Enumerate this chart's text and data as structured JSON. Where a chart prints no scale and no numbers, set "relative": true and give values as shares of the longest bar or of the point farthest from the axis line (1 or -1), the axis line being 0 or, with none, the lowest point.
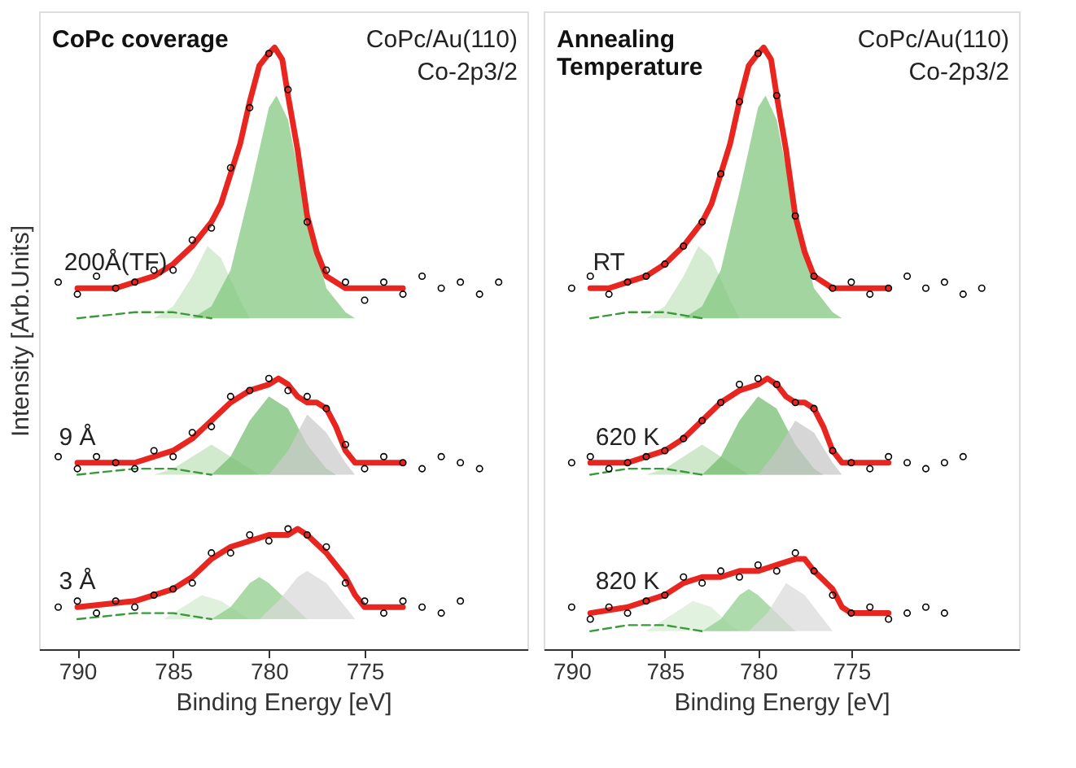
{
  "chart_data": [
    {
      "type": "line",
      "title": "CoPc coverage",
      "xlabel": "Binding Energy [eV]",
      "ylabel": "Intensity [Arb.Units]",
      "relative": true,
      "xlim": [
        792,
        766.5
      ],
      "xticks": [
        790,
        785,
        780,
        775
      ],
      "tick_labels": "x",
      "grid": false,
      "annotations": [
        "CoPc/Au(110)",
        "Co-2p3/2",
        {
          "text": "200Å(TF)",
          "x": 788,
          "y": 0.6
        },
        {
          "text": "9 Å",
          "x": 790,
          "y": 0.31
        },
        {
          "text": "3 Å",
          "x": 790,
          "y": 0.07
        }
      ],
      "series": [
        {
          "type": "area",
          "color": "#c8e6c3",
          "x": [
            786,
            785,
            784,
            783.2,
            782.5,
            781.5,
            781
          ],
          "values": [
            0.55,
            0.57,
            0.62,
            0.67,
            0.65,
            0.58,
            0.55
          ]
        },
        {
          "type": "area",
          "color": "#80c67c",
          "x": [
            784,
            783,
            782,
            781,
            780,
            779.6,
            779,
            778,
            777,
            776,
            775.5
          ],
          "values": [
            0.55,
            0.57,
            0.63,
            0.76,
            0.9,
            0.92,
            0.88,
            0.72,
            0.6,
            0.56,
            0.55
          ]
        },
        {
          "type": "line",
          "line_style": "dashed",
          "color": "#3a9a3a",
          "x": [
            790,
            787,
            785,
            783
          ],
          "values": [
            0.55,
            0.56,
            0.56,
            0.55
          ]
        },
        {
          "type": "area",
          "color": "#bfe0b9",
          "x": [
            786,
            785,
            784,
            783,
            782,
            781,
            780.5
          ],
          "values": [
            0.29,
            0.3,
            0.32,
            0.34,
            0.32,
            0.3,
            0.29
          ]
        },
        {
          "type": "area",
          "color": "#74bd70",
          "x": [
            783,
            782,
            781,
            780,
            779,
            778,
            777,
            776.5
          ],
          "values": [
            0.29,
            0.32,
            0.38,
            0.42,
            0.4,
            0.34,
            0.3,
            0.29
          ]
        },
        {
          "type": "area",
          "color": "#cacaca",
          "x": [
            780,
            779,
            778,
            777,
            776,
            775.5
          ],
          "values": [
            0.29,
            0.33,
            0.39,
            0.36,
            0.31,
            0.29
          ]
        },
        {
          "type": "line",
          "line_style": "dashed",
          "color": "#3a9a3a",
          "x": [
            790,
            787,
            785,
            783
          ],
          "values": [
            0.29,
            0.3,
            0.3,
            0.29
          ]
        },
        {
          "type": "area",
          "color": "#d2ebce",
          "x": [
            785.5,
            784.5,
            783.5,
            782.5,
            781.5,
            781
          ],
          "values": [
            0.05,
            0.07,
            0.09,
            0.08,
            0.06,
            0.05
          ]
        },
        {
          "type": "area",
          "color": "#8bcc87",
          "x": [
            783,
            782,
            781,
            780.5,
            780,
            779,
            778
          ],
          "values": [
            0.05,
            0.07,
            0.11,
            0.12,
            0.11,
            0.08,
            0.05
          ]
        },
        {
          "type": "area",
          "color": "#d8d8d8",
          "x": [
            780.5,
            779.5,
            778.5,
            778,
            777,
            776,
            775.5
          ],
          "values": [
            0.05,
            0.08,
            0.12,
            0.13,
            0.11,
            0.07,
            0.05
          ]
        },
        {
          "type": "line",
          "line_style": "dashed",
          "color": "#3a9a3a",
          "x": [
            790,
            787,
            785,
            783
          ],
          "values": [
            0.05,
            0.06,
            0.06,
            0.05
          ]
        },
        {
          "type": "scatter",
          "marker": "circle",
          "color": "#000000",
          "x": [
            791,
            790,
            789,
            788,
            787,
            786,
            785,
            784,
            783,
            782,
            781,
            780,
            779,
            778,
            777,
            776,
            775,
            774,
            773,
            772,
            771,
            770,
            769,
            768
          ],
          "values": [
            0.61,
            0.59,
            0.62,
            0.6,
            0.61,
            0.63,
            0.63,
            0.68,
            0.7,
            0.8,
            0.9,
            0.99,
            0.93,
            0.71,
            0.63,
            0.61,
            0.58,
            0.61,
            0.59,
            0.62,
            0.6,
            0.61,
            0.59,
            0.61
          ]
        },
        {
          "type": "scatter",
          "marker": "circle",
          "color": "#000000",
          "x": [
            791,
            790,
            789,
            788,
            787,
            786,
            785,
            784,
            783,
            782,
            781,
            780,
            779,
            778,
            777,
            776,
            775,
            774,
            773,
            772,
            771,
            770,
            769
          ],
          "values": [
            0.32,
            0.3,
            0.32,
            0.31,
            0.3,
            0.33,
            0.32,
            0.36,
            0.37,
            0.42,
            0.43,
            0.45,
            0.43,
            0.42,
            0.4,
            0.34,
            0.3,
            0.32,
            0.31,
            0.3,
            0.32,
            0.31,
            0.3
          ]
        },
        {
          "type": "scatter",
          "marker": "circle",
          "color": "#000000",
          "x": [
            791,
            790,
            789,
            788,
            787,
            786,
            785,
            784,
            783,
            782,
            781,
            780,
            779,
            778,
            777,
            776,
            775,
            774,
            773,
            772,
            771,
            770
          ],
          "values": [
            0.07,
            0.08,
            0.06,
            0.08,
            0.07,
            0.09,
            0.1,
            0.11,
            0.16,
            0.16,
            0.19,
            0.18,
            0.2,
            0.19,
            0.17,
            0.11,
            0.08,
            0.06,
            0.08,
            0.07,
            0.06,
            0.08
          ]
        },
        {
          "color": "#e8251f",
          "x": [
            790,
            788,
            786,
            785,
            784,
            783,
            782.5,
            782,
            781.5,
            781,
            780.5,
            780,
            779.7,
            779.3,
            779,
            778.5,
            778,
            777.5,
            777,
            776,
            775,
            773
          ],
          "values": [
            0.6,
            0.6,
            0.62,
            0.64,
            0.67,
            0.71,
            0.74,
            0.79,
            0.84,
            0.91,
            0.97,
            0.99,
            1.0,
            0.98,
            0.92,
            0.83,
            0.72,
            0.66,
            0.62,
            0.6,
            0.6,
            0.6
          ]
        },
        {
          "color": "#e8251f",
          "x": [
            790,
            787,
            785,
            784,
            783,
            782,
            781,
            780,
            779.5,
            779,
            778.5,
            778,
            777.5,
            777,
            776.5,
            776,
            775.5,
            775,
            773
          ],
          "values": [
            0.31,
            0.31,
            0.33,
            0.35,
            0.38,
            0.41,
            0.43,
            0.44,
            0.45,
            0.44,
            0.42,
            0.41,
            0.41,
            0.4,
            0.37,
            0.33,
            0.31,
            0.31,
            0.31
          ]
        },
        {
          "color": "#e8251f",
          "x": [
            790,
            787,
            785,
            784,
            783,
            782,
            781,
            780,
            779,
            778.5,
            778,
            777,
            776,
            775.5,
            775,
            773
          ],
          "values": [
            0.07,
            0.08,
            0.1,
            0.12,
            0.15,
            0.17,
            0.18,
            0.19,
            0.19,
            0.2,
            0.19,
            0.16,
            0.12,
            0.09,
            0.07,
            0.07
          ]
        }
      ]
    },
    {
      "type": "line",
      "title": "Annealing\nTemperature",
      "xlabel": "Binding Energy [eV]",
      "relative": true,
      "xlim": [
        791.5,
        766
      ],
      "xticks": [
        790,
        785,
        780,
        775
      ],
      "tick_labels": "x",
      "grid": false,
      "annotations": [
        "CoPc/Au(110)",
        "Co-2p3/2",
        {
          "text": "RT",
          "x": 788,
          "y": 0.6
        },
        {
          "text": "620 K",
          "x": 787,
          "y": 0.31
        },
        {
          "text": "820 K",
          "x": 787,
          "y": 0.07
        }
      ],
      "series": [
        {
          "type": "area",
          "color": "#c6e5c1",
          "x": [
            786,
            785,
            784,
            783.2,
            782.5,
            781.5,
            781
          ],
          "values": [
            0.55,
            0.57,
            0.62,
            0.67,
            0.65,
            0.58,
            0.55
          ]
        },
        {
          "type": "area",
          "color": "#7ec57a",
          "x": [
            784,
            783,
            782,
            781,
            780,
            779.6,
            779,
            778,
            777,
            776,
            775.5
          ],
          "values": [
            0.55,
            0.57,
            0.63,
            0.76,
            0.9,
            0.92,
            0.88,
            0.72,
            0.6,
            0.56,
            0.55
          ]
        },
        {
          "type": "line",
          "line_style": "dashed",
          "color": "#3a9a3a",
          "x": [
            789,
            787,
            785,
            783
          ],
          "values": [
            0.55,
            0.56,
            0.56,
            0.55
          ]
        },
        {
          "type": "area",
          "color": "#bcdeb6",
          "x": [
            786,
            785,
            784,
            783,
            782,
            781,
            780.5
          ],
          "values": [
            0.29,
            0.3,
            0.32,
            0.34,
            0.32,
            0.3,
            0.29
          ]
        },
        {
          "type": "area",
          "color": "#71bb6d",
          "x": [
            783,
            782,
            781,
            780,
            779,
            778,
            777,
            776.5
          ],
          "values": [
            0.29,
            0.32,
            0.38,
            0.42,
            0.4,
            0.34,
            0.3,
            0.29
          ]
        },
        {
          "type": "area",
          "color": "#c6c6c6",
          "x": [
            780,
            779,
            778,
            777,
            776,
            775.5
          ],
          "values": [
            0.29,
            0.33,
            0.38,
            0.36,
            0.31,
            0.29
          ]
        },
        {
          "type": "line",
          "line_style": "dashed",
          "color": "#3a9a3a",
          "x": [
            789,
            787,
            785,
            783
          ],
          "values": [
            0.29,
            0.3,
            0.3,
            0.29
          ]
        },
        {
          "type": "area",
          "color": "#d5edd1",
          "x": [
            786,
            785,
            784,
            783.5,
            782.5,
            781.5,
            781
          ],
          "values": [
            0.03,
            0.05,
            0.07,
            0.08,
            0.07,
            0.04,
            0.03
          ]
        },
        {
          "type": "area",
          "color": "#8ecd8a",
          "x": [
            783,
            782,
            781,
            780.5,
            780,
            779,
            778
          ],
          "values": [
            0.03,
            0.05,
            0.09,
            0.1,
            0.09,
            0.06,
            0.03
          ]
        },
        {
          "type": "area",
          "color": "#dadada",
          "x": [
            780.5,
            779.5,
            778.5,
            777.5,
            776.5,
            776
          ],
          "values": [
            0.03,
            0.06,
            0.11,
            0.09,
            0.05,
            0.03
          ]
        },
        {
          "type": "line",
          "line_style": "dashed",
          "color": "#3a9a3a",
          "x": [
            789,
            787,
            785,
            783
          ],
          "values": [
            0.03,
            0.04,
            0.04,
            0.03
          ]
        },
        {
          "type": "scatter",
          "marker": "circle",
          "color": "#000000",
          "x": [
            790,
            789,
            788,
            787,
            786,
            785,
            784,
            783,
            782,
            781,
            780,
            779,
            778,
            777,
            776,
            775,
            774,
            773,
            772,
            771,
            770,
            769,
            768
          ],
          "values": [
            0.6,
            0.62,
            0.59,
            0.61,
            0.62,
            0.64,
            0.67,
            0.71,
            0.79,
            0.91,
            0.99,
            0.92,
            0.72,
            0.62,
            0.6,
            0.61,
            0.59,
            0.6,
            0.62,
            0.6,
            0.61,
            0.59,
            0.6
          ]
        },
        {
          "type": "scatter",
          "marker": "circle",
          "color": "#000000",
          "x": [
            790,
            789,
            788,
            787,
            786,
            785,
            784,
            783,
            782,
            781,
            780,
            779,
            778,
            777,
            776,
            775,
            774,
            773,
            772,
            771,
            770,
            769
          ],
          "values": [
            0.31,
            0.32,
            0.3,
            0.31,
            0.32,
            0.33,
            0.35,
            0.38,
            0.41,
            0.44,
            0.45,
            0.44,
            0.41,
            0.4,
            0.33,
            0.31,
            0.3,
            0.32,
            0.31,
            0.3,
            0.31,
            0.32
          ]
        },
        {
          "type": "scatter",
          "marker": "circle",
          "color": "#000000",
          "x": [
            790,
            789,
            788,
            787,
            786,
            785,
            784,
            783,
            782,
            781,
            780,
            779,
            778,
            777,
            776,
            775,
            774,
            773,
            772,
            771,
            770
          ],
          "values": [
            0.07,
            0.05,
            0.07,
            0.06,
            0.08,
            0.09,
            0.12,
            0.11,
            0.13,
            0.12,
            0.14,
            0.13,
            0.16,
            0.13,
            0.09,
            0.06,
            0.07,
            0.05,
            0.06,
            0.07,
            0.06
          ]
        },
        {
          "color": "#e8251f",
          "x": [
            789,
            788,
            786,
            785,
            784,
            783,
            782.5,
            782,
            781.5,
            781,
            780.5,
            780,
            779.7,
            779.3,
            779,
            778.5,
            778,
            777.5,
            777,
            776,
            775,
            773
          ],
          "values": [
            0.6,
            0.6,
            0.62,
            0.64,
            0.67,
            0.71,
            0.74,
            0.79,
            0.84,
            0.91,
            0.97,
            0.99,
            1.0,
            0.98,
            0.92,
            0.83,
            0.72,
            0.66,
            0.62,
            0.6,
            0.6,
            0.6
          ]
        },
        {
          "color": "#e8251f",
          "x": [
            789,
            787,
            785,
            784,
            783,
            782,
            781,
            780,
            779.5,
            779,
            778.5,
            778,
            777.5,
            777,
            776.5,
            776,
            775.5,
            775,
            773
          ],
          "values": [
            0.31,
            0.31,
            0.33,
            0.35,
            0.38,
            0.41,
            0.43,
            0.44,
            0.45,
            0.44,
            0.42,
            0.41,
            0.41,
            0.4,
            0.37,
            0.33,
            0.31,
            0.31,
            0.31
          ]
        },
        {
          "color": "#e8251f",
          "x": [
            789,
            787,
            785,
            784,
            783,
            782,
            781,
            780,
            779,
            778,
            777.5,
            777,
            776,
            775.5,
            775,
            773
          ],
          "values": [
            0.06,
            0.07,
            0.09,
            0.11,
            0.12,
            0.12,
            0.13,
            0.13,
            0.14,
            0.15,
            0.15,
            0.13,
            0.1,
            0.07,
            0.06,
            0.06
          ]
        }
      ]
    }
  ]
}
